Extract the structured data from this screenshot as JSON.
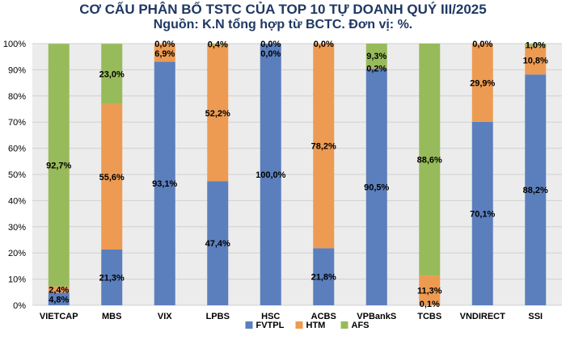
{
  "chart_data": {
    "type": "bar",
    "stacked": true,
    "percent": true,
    "title": "CƠ CẤU PHÂN BỔ TSTC CỦA TOP 10 TỰ DOANH QUÝ III/2025",
    "subtitle": "Nguồn: K.N tổng hợp từ BCTC. Đơn vị: %.",
    "categories": [
      "VIETCAP",
      "MBS",
      "VIX",
      "LPBS",
      "HSC",
      "ACBS",
      "VPBankS",
      "TCBS",
      "VNDIRECT",
      "SSI"
    ],
    "series": [
      {
        "name": "FVTPL",
        "color": "#5b7fbd",
        "values": [
          4.8,
          21.3,
          93.1,
          47.4,
          100.0,
          21.8,
          90.5,
          0.1,
          70.1,
          88.2
        ],
        "labels": [
          "4,8%",
          "21,3%",
          "93,1%",
          "47,4%",
          "100,0%",
          "21,8%",
          "90,5%",
          "0,1%",
          "70,1%",
          "88,2%"
        ]
      },
      {
        "name": "HTM",
        "color": "#ed9b52",
        "values": [
          2.4,
          55.6,
          6.9,
          52.2,
          0.0,
          78.2,
          0.2,
          11.3,
          29.9,
          10.8
        ],
        "labels": [
          "2,4%",
          "55,6%",
          "6,9%",
          "52,2%",
          "0,0%",
          "78,2%",
          "0,2%",
          "11,3%",
          "29,9%",
          "10,8%"
        ]
      },
      {
        "name": "AFS",
        "color": "#97bb5a",
        "values": [
          92.7,
          23.0,
          0.0,
          0.4,
          0.0,
          0.0,
          9.3,
          88.6,
          0.0,
          1.0
        ],
        "labels": [
          "92,7%",
          "23,0%",
          "0,0%",
          "0,4%",
          "0,0%",
          "0,0%",
          "9,3%",
          "88,6%",
          "0,0%",
          "1,0%"
        ]
      }
    ],
    "ylim": [
      0,
      100
    ],
    "yticks": [
      "0%",
      "10%",
      "20%",
      "30%",
      "40%",
      "50%",
      "60%",
      "70%",
      "80%",
      "90%",
      "100%"
    ],
    "grid": true,
    "legend": "bottom"
  }
}
